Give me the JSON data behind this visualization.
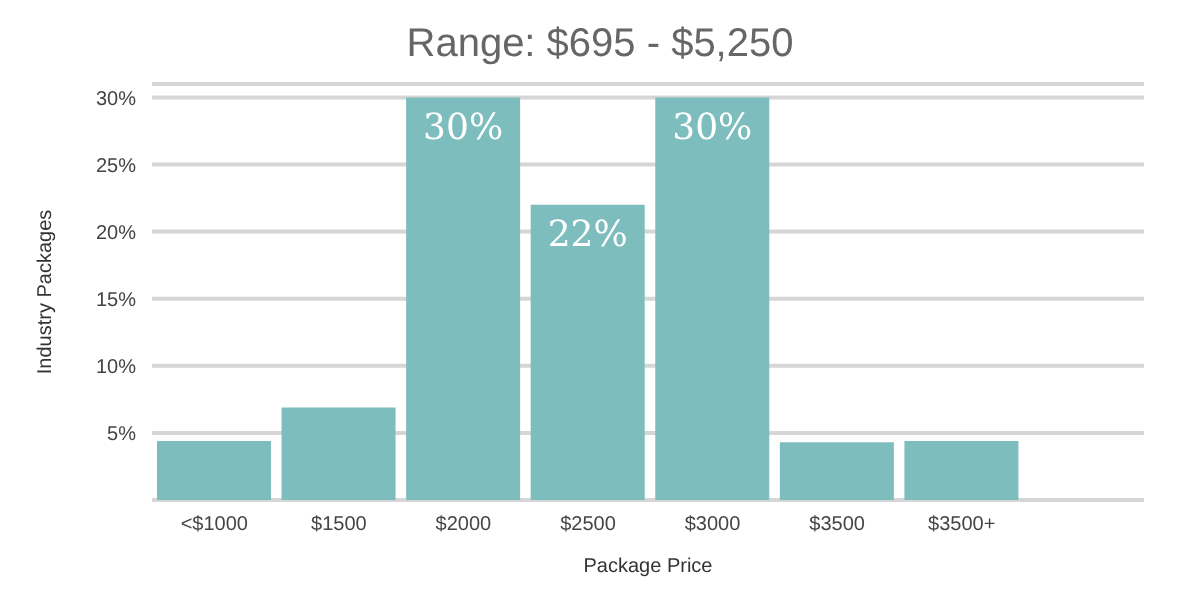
{
  "chart_data": {
    "type": "bar",
    "title": "Range: $695 - $5,250",
    "xlabel": "Package Price",
    "ylabel": "Industry Packages",
    "categories": [
      "<$1000",
      "$1500",
      "$2000",
      "$2500",
      "$3000",
      "$3500",
      "$3500+"
    ],
    "values": [
      4.4,
      6.9,
      30,
      22,
      30,
      4.3,
      4.4
    ],
    "value_labels": [
      null,
      null,
      "30%",
      "22%",
      "30%",
      null,
      null
    ],
    "color": "#7dbdbd",
    "ylim": [
      0,
      31
    ],
    "yticks": [
      {
        "value": 5,
        "label": "5%"
      },
      {
        "value": 10,
        "label": "10%"
      },
      {
        "value": 15,
        "label": "15%"
      },
      {
        "value": 20,
        "label": "20%"
      },
      {
        "value": 25,
        "label": "25%"
      },
      {
        "value": 30,
        "label": "30%"
      }
    ],
    "grid": "y"
  }
}
